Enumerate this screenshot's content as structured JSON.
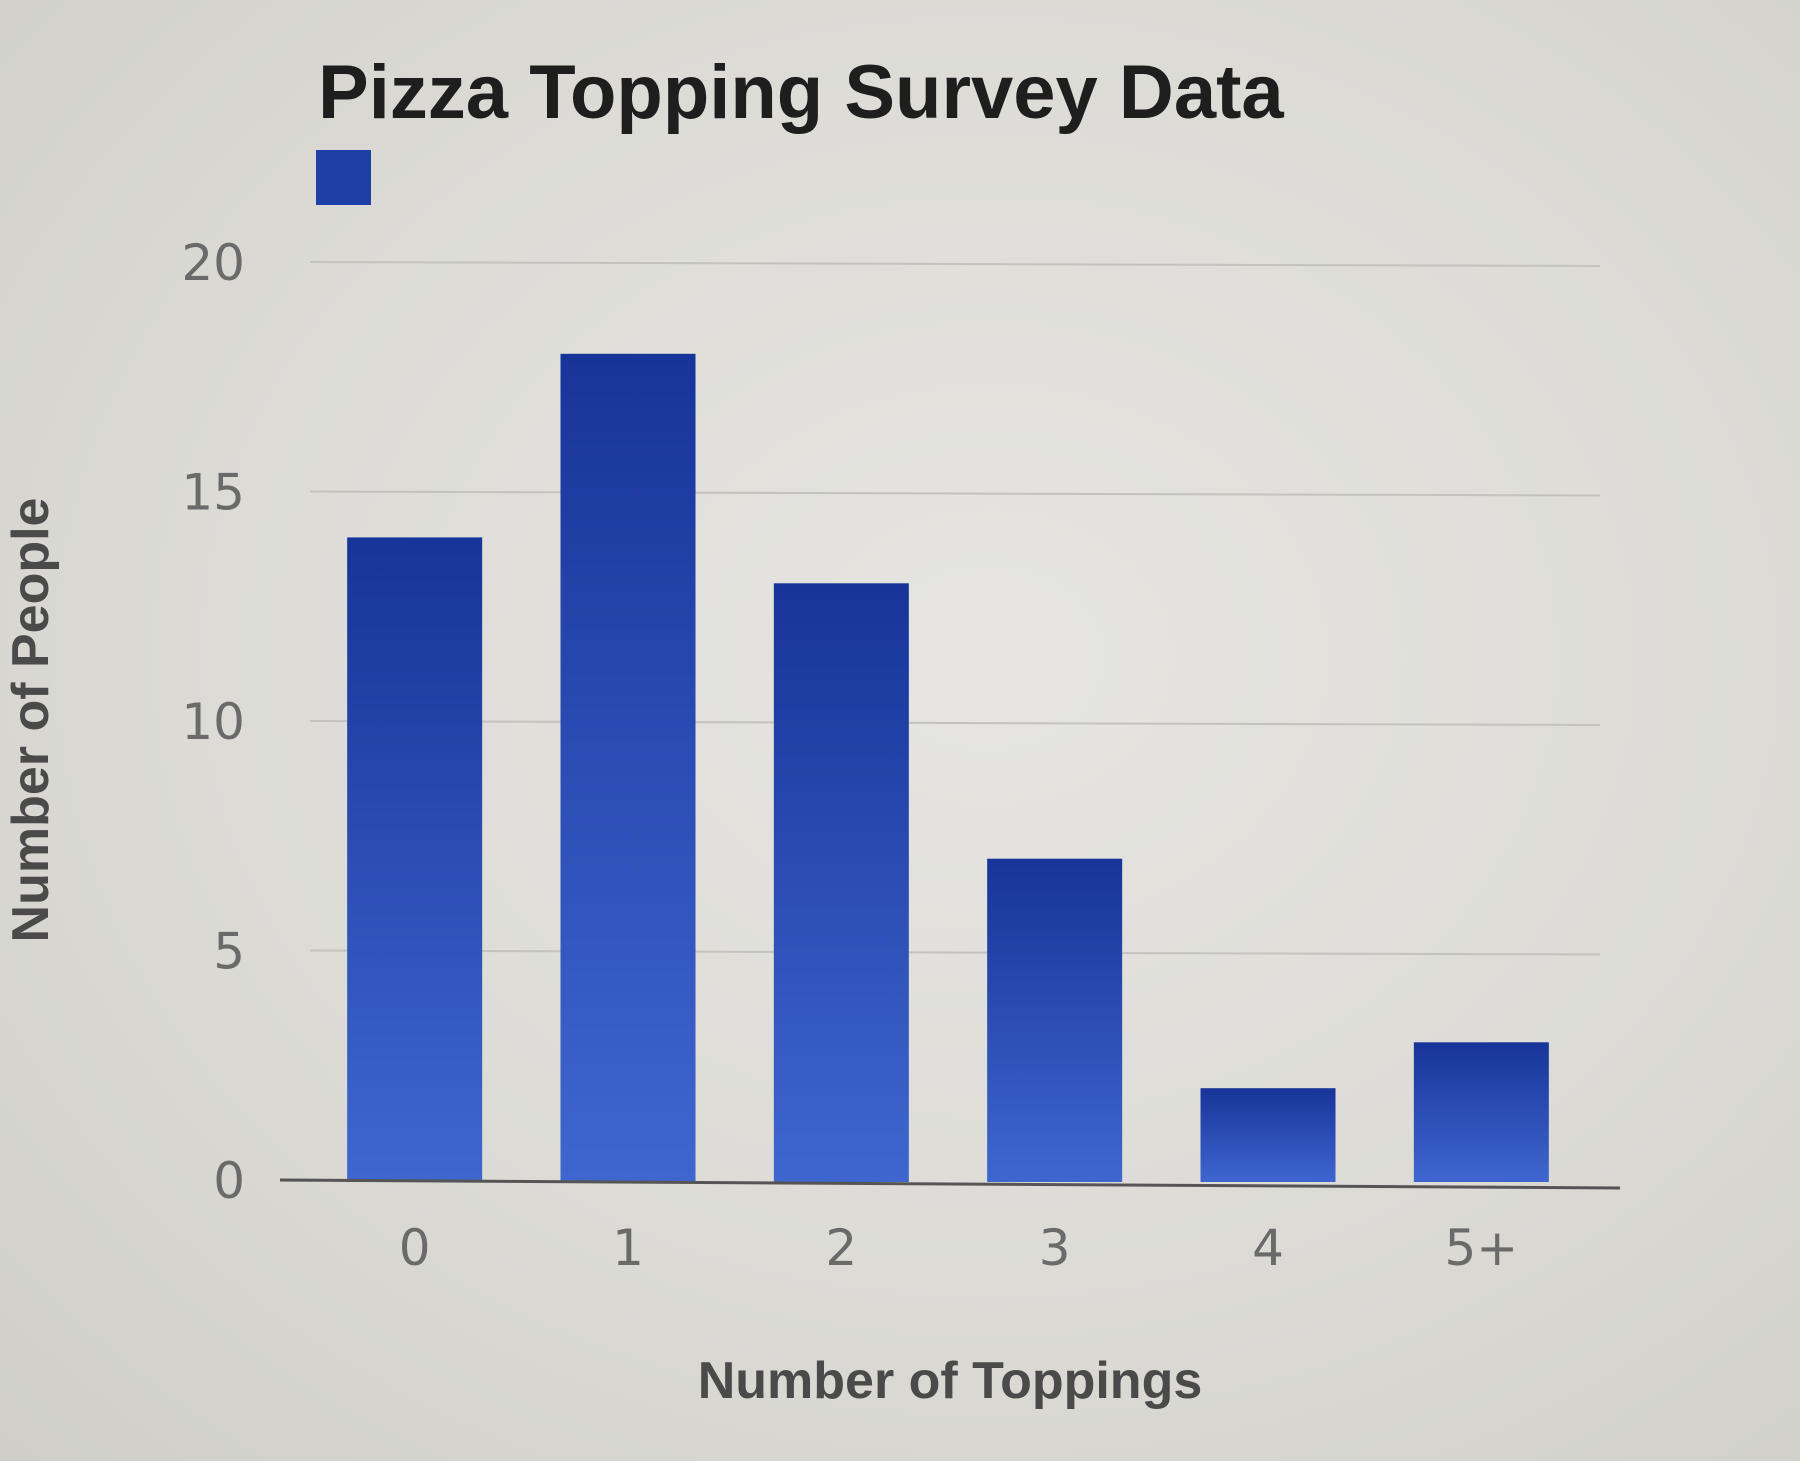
{
  "chart_data": {
    "type": "bar",
    "title": "Pizza Topping Survey Data",
    "xlabel": "Number of Toppings",
    "ylabel": "Number of People",
    "categories": [
      "0",
      "1",
      "2",
      "3",
      "4",
      "5+"
    ],
    "series": [
      {
        "values": [
          14,
          18,
          13,
          7,
          2,
          3
        ]
      }
    ],
    "ylim": [
      0,
      20
    ],
    "yticks": [
      "0",
      "5",
      "10",
      "15",
      "20"
    ],
    "grid": true,
    "legend": "top-left",
    "colors": {
      "bar_top": "#17349a",
      "bar_bottom": "#3f66cf",
      "legend_swatch": "#1e3fa6"
    }
  }
}
